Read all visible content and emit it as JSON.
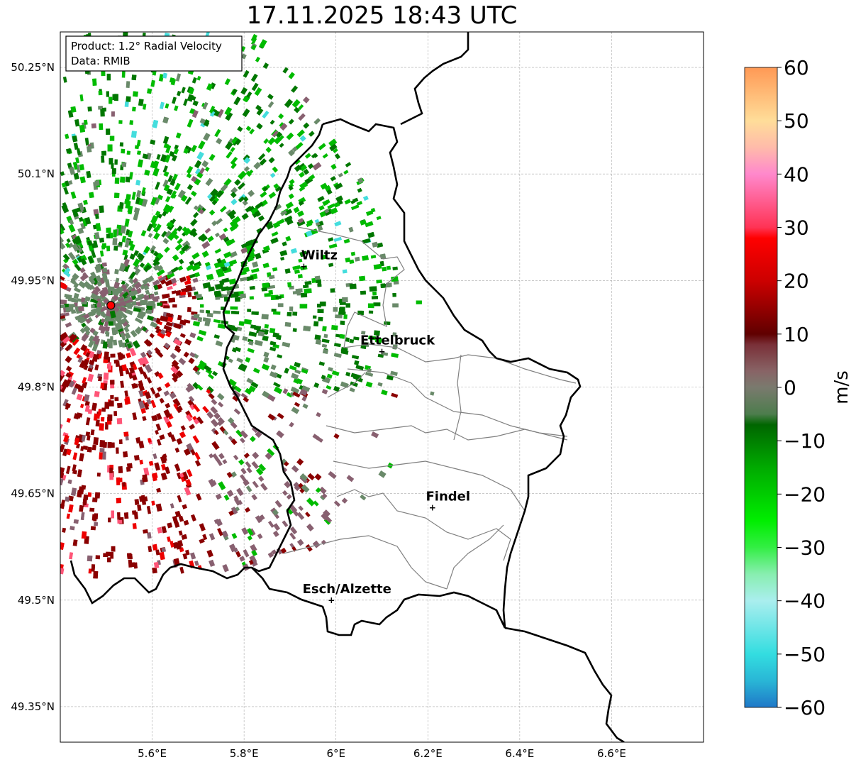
{
  "title": "17.11.2025 18:43 UTC",
  "info_box": {
    "product": "Product: 1.2° Radial Velocity",
    "data": "Data: RMIB"
  },
  "axes": {
    "lon_ticks": [
      {
        "value": 5.6,
        "label": "5.6°E"
      },
      {
        "value": 5.8,
        "label": "5.8°E"
      },
      {
        "value": 6.0,
        "label": "6°E"
      },
      {
        "value": 6.2,
        "label": "6.2°E"
      },
      {
        "value": 6.4,
        "label": "6.4°E"
      },
      {
        "value": 6.6,
        "label": "6.6°E"
      }
    ],
    "lat_ticks": [
      {
        "value": 50.25,
        "label": "50.25°N"
      },
      {
        "value": 50.1,
        "label": "50.1°N"
      },
      {
        "value": 49.95,
        "label": "49.95°N"
      },
      {
        "value": 49.8,
        "label": "49.8°N"
      },
      {
        "value": 49.65,
        "label": "49.65°N"
      },
      {
        "value": 49.5,
        "label": "49.5°N"
      },
      {
        "value": 49.35,
        "label": "49.35°N"
      }
    ],
    "lon_range": [
      5.4,
      6.8
    ],
    "lat_range": [
      49.3,
      50.3
    ],
    "grid": true
  },
  "cities": [
    {
      "name": "Wiltz",
      "lon": 5.93,
      "lat": 49.97
    },
    {
      "name": "Ettelbruck",
      "lon": 6.1,
      "lat": 49.85
    },
    {
      "name": "Findel",
      "lon": 6.21,
      "lat": 49.63
    },
    {
      "name": "Esch/Alzette",
      "lon": 5.99,
      "lat": 49.5
    }
  ],
  "radar_site": {
    "lon": 5.51,
    "lat": 49.915,
    "color": "#ff0000"
  },
  "colorbar": {
    "label": "m/s",
    "ticks": [
      "60",
      "50",
      "40",
      "30",
      "20",
      "10",
      "0",
      "−10",
      "−20",
      "−30",
      "−40",
      "−50",
      "−60"
    ],
    "range": [
      -60,
      60
    ],
    "stops": [
      {
        "v": -60,
        "color": "#1f78c8"
      },
      {
        "v": -55,
        "color": "#29b6d6"
      },
      {
        "v": -50,
        "color": "#33dde0"
      },
      {
        "v": -40,
        "color": "#aaeeee"
      },
      {
        "v": -35,
        "color": "#88eeb0"
      },
      {
        "v": -30,
        "color": "#33ee44"
      },
      {
        "v": -25,
        "color": "#00ee00"
      },
      {
        "v": -15,
        "color": "#00aa00"
      },
      {
        "v": -7,
        "color": "#006600"
      },
      {
        "v": -5,
        "color": "#4d7d4d"
      },
      {
        "v": 0,
        "color": "#7a7a6e"
      },
      {
        "v": 3,
        "color": "#886466"
      },
      {
        "v": 8,
        "color": "#7a3038"
      },
      {
        "v": 10,
        "color": "#600000"
      },
      {
        "v": 20,
        "color": "#cc0000"
      },
      {
        "v": 28,
        "color": "#ff0000"
      },
      {
        "v": 30,
        "color": "#ff3355"
      },
      {
        "v": 40,
        "color": "#ff88cc"
      },
      {
        "v": 45,
        "color": "#ffbbaa"
      },
      {
        "v": 50,
        "color": "#ffdd99"
      },
      {
        "v": 60,
        "color": "#ff9955"
      }
    ]
  },
  "colors": {
    "border": "#000000",
    "canton": "#808080",
    "grid": "#aaaaaa",
    "green": "#00bb00",
    "dark_green": "#007700",
    "gray_green": "#6a8a6a",
    "mauve": "#886070",
    "dark_red": "#8a0000",
    "red": "#ee0000",
    "pink": "#ff5577",
    "cyan": "#44dddd"
  }
}
